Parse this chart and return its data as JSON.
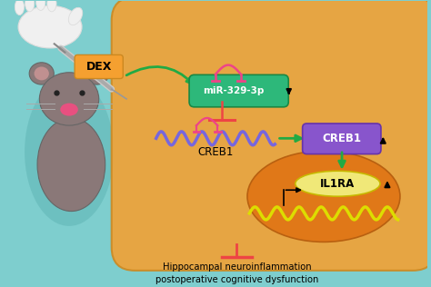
{
  "bg_color": "#7ecece",
  "cell_color": "#f5a030",
  "cell_alpha": 0.88,
  "nucleus_color_outer": "#e07818",
  "nucleus_color_inner": "#e09828",
  "dex_box_color": "#f5a030",
  "mir_box_color": "#2db87a",
  "creb1_box_color": "#8855cc",
  "il1ra_box_color": "#f0e878",
  "mir_label": "miR-329-3p",
  "creb1_label": "CREB1",
  "il1ra_label": "IL1RA",
  "dex_label": "DEX",
  "bottom_text1": "Hippocampal neuroinflammation",
  "bottom_text2": "postoperative cognitive dysfunction",
  "green_color": "#22aa44",
  "red_color": "#ee4444",
  "pink_color": "#ee4488",
  "wave_blue": "#7766dd",
  "wave_yellow": "#dddd00",
  "mouse_body": "#8a7878",
  "mouse_shadow": "#5ab0b0",
  "glove_color": "#f0f0f0"
}
